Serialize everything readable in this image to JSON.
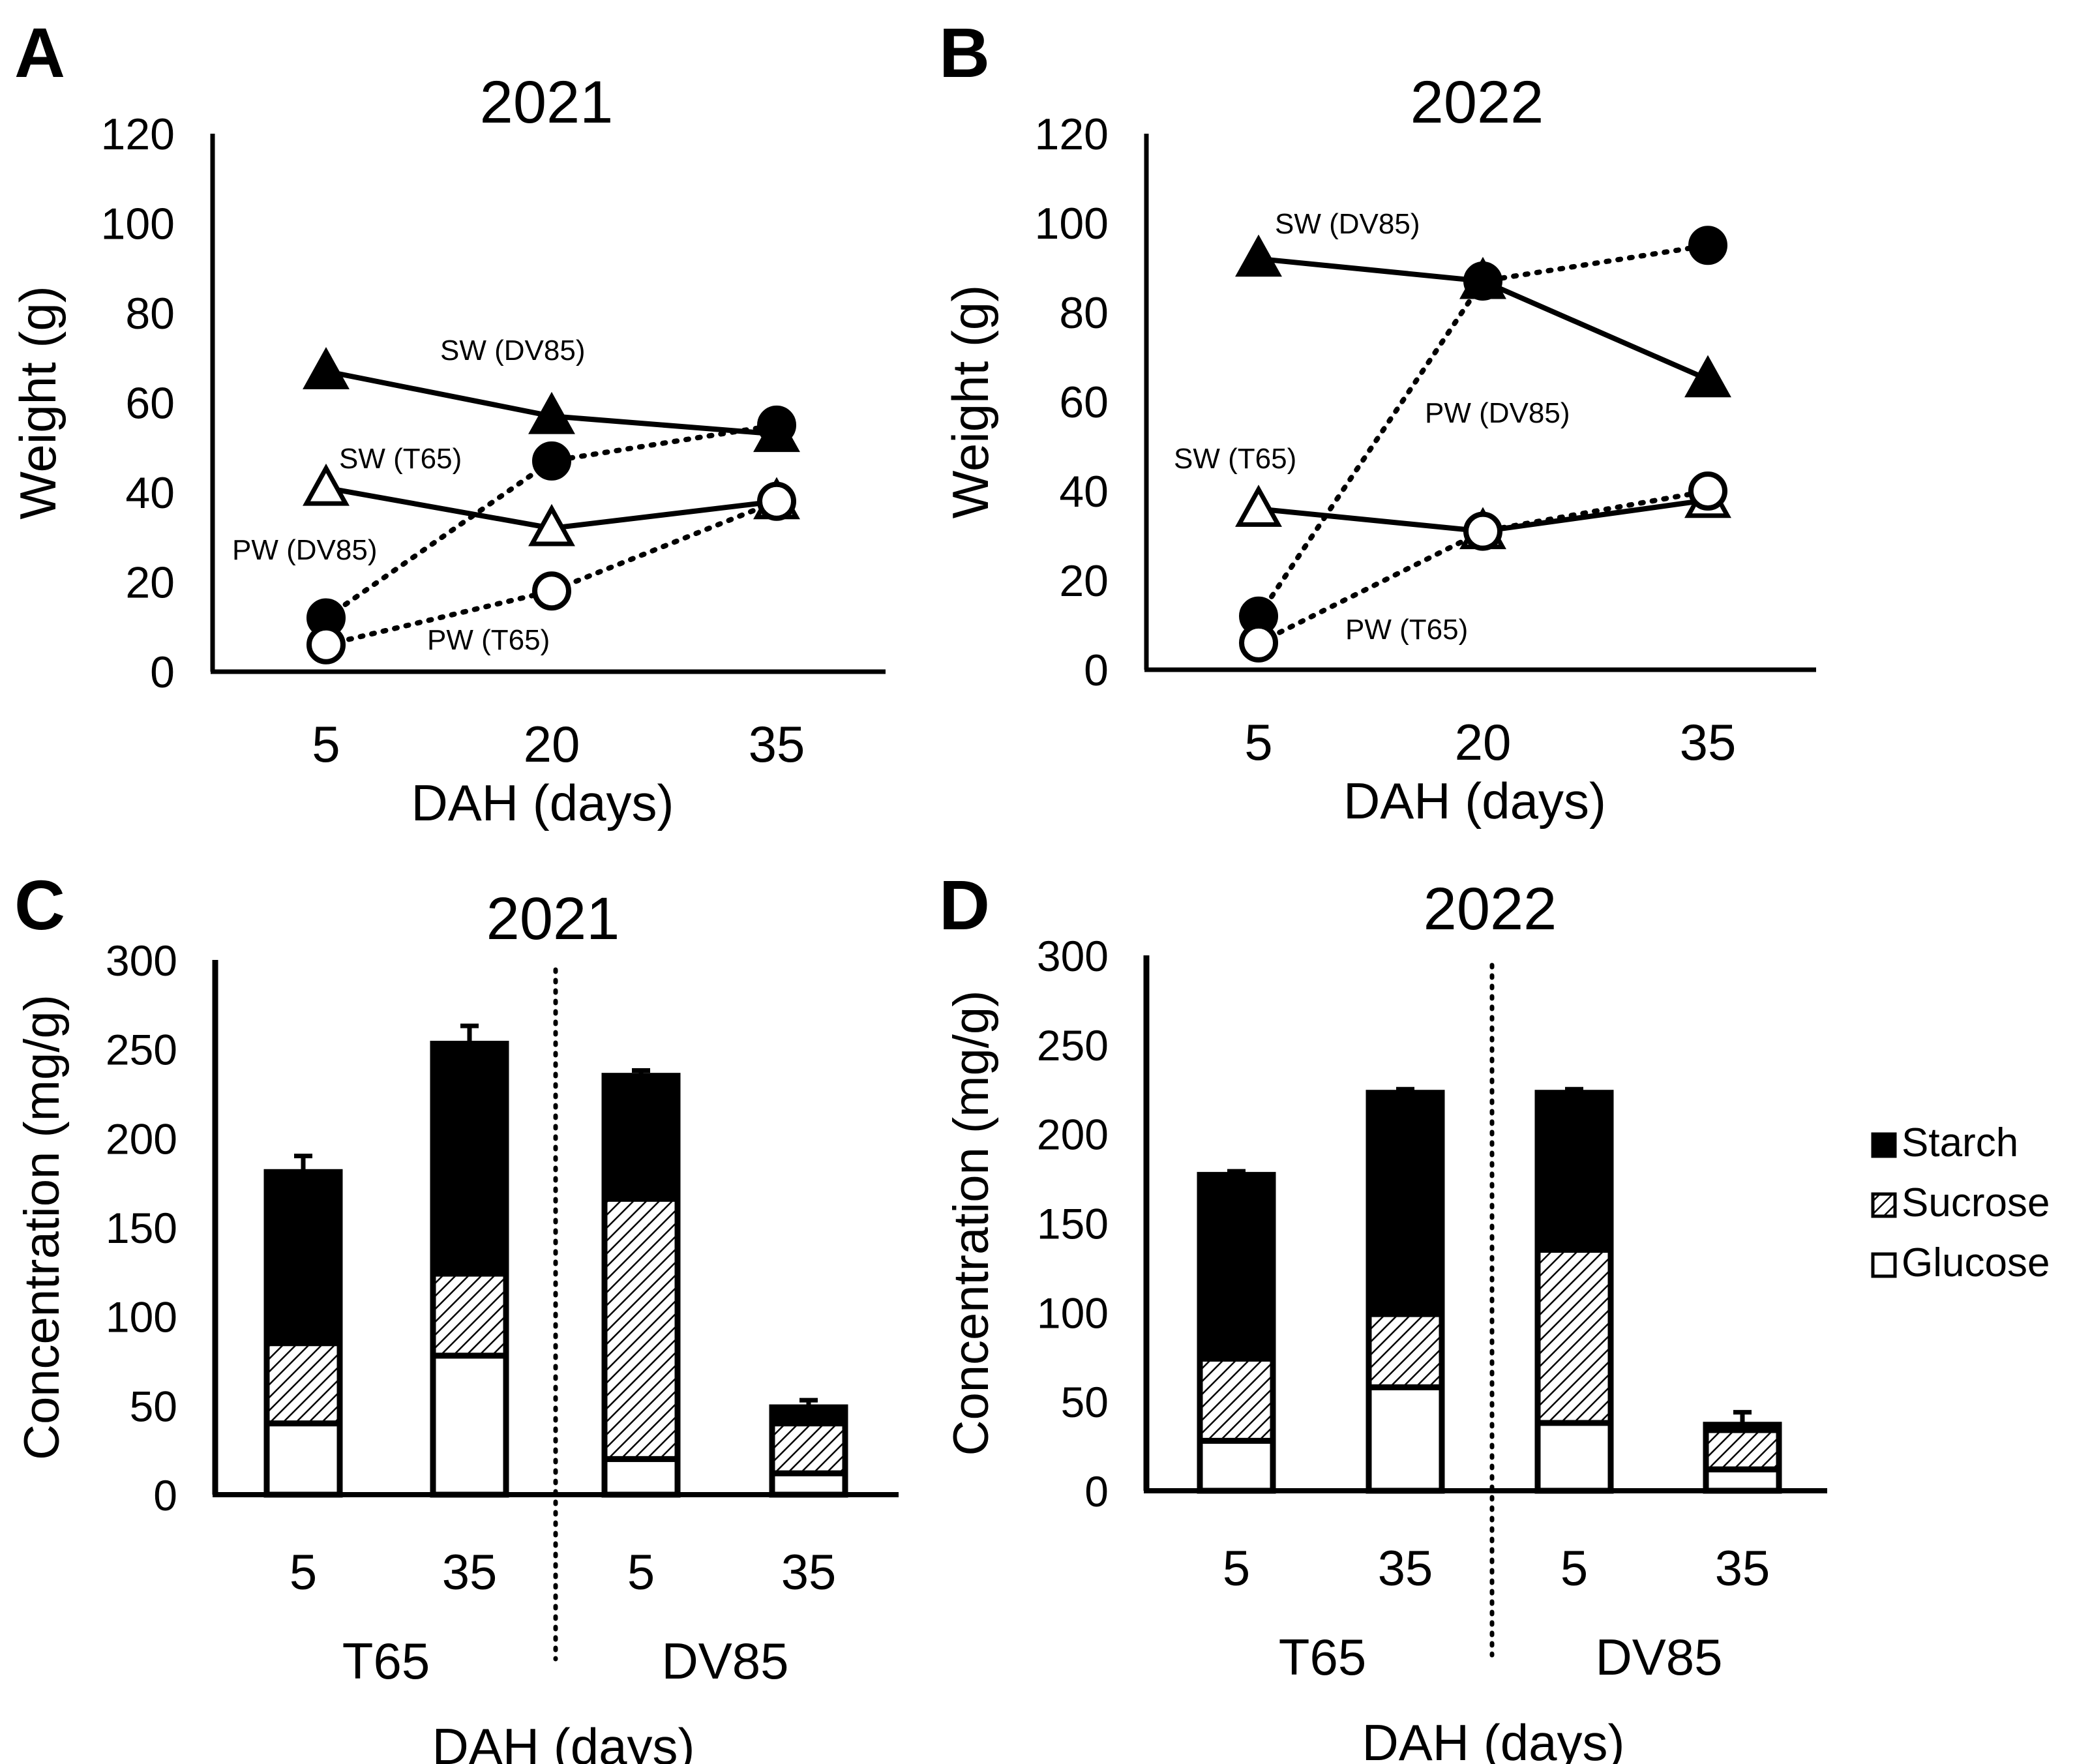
{
  "colors": {
    "ink": "#000000",
    "paper": "#ffffff"
  },
  "chart_data": [
    {
      "panel": "A",
      "type": "line",
      "title": "2021",
      "xlabel": "DAH (days)",
      "ylabel": "Weight (g)",
      "x": [
        5,
        20,
        35
      ],
      "ylim": [
        0,
        120
      ],
      "yticks": [
        "0",
        "20",
        "40",
        "60",
        "80",
        "100",
        "120"
      ],
      "series": [
        {
          "name": "SW (DV85)",
          "marker": "triangle-filled",
          "line": "solid",
          "values": [
            67,
            57,
            53
          ]
        },
        {
          "name": "SW (T65)",
          "marker": "triangle-open",
          "line": "solid",
          "values": [
            41,
            32,
            38
          ]
        },
        {
          "name": "PW (DV85)",
          "marker": "circle-filled",
          "line": "dotted",
          "values": [
            12,
            47,
            55
          ]
        },
        {
          "name": "PW (T65)",
          "marker": "circle-open",
          "line": "dotted",
          "values": [
            6,
            18,
            38
          ]
        }
      ]
    },
    {
      "panel": "B",
      "type": "line",
      "title": "2022",
      "xlabel": "DAH (days)",
      "ylabel": "Weight (g)",
      "x": [
        5,
        20,
        35
      ],
      "ylim": [
        0,
        120
      ],
      "yticks": [
        "0",
        "20",
        "40",
        "60",
        "80",
        "100",
        "120"
      ],
      "series": [
        {
          "name": "SW (DV85)",
          "marker": "triangle-filled",
          "line": "solid",
          "values": [
            92,
            87,
            65
          ]
        },
        {
          "name": "SW (T65)",
          "marker": "triangle-open",
          "line": "solid",
          "values": [
            36,
            31,
            38
          ]
        },
        {
          "name": "PW (DV85)",
          "marker": "circle-filled",
          "line": "dotted",
          "values": [
            12,
            87,
            95
          ]
        },
        {
          "name": "PW (T65)",
          "marker": "circle-open",
          "line": "dotted",
          "values": [
            6,
            31,
            40
          ]
        }
      ]
    },
    {
      "panel": "C",
      "type": "bar",
      "stacked": true,
      "title": "2021",
      "xlabel": "DAH (days)",
      "ylabel": "Concentration (mg/g)",
      "ylim": [
        0,
        300
      ],
      "yticks": [
        "0",
        "50",
        "100",
        "150",
        "200",
        "250",
        "300"
      ],
      "groups": [
        "T65",
        "DV85"
      ],
      "categories": [
        "5",
        "35",
        "5",
        "35"
      ],
      "legend": [
        "Starch",
        "Sucrose",
        "Glucose"
      ],
      "series": [
        {
          "name": "Glucose",
          "values": [
            40,
            78,
            20,
            12
          ],
          "errors": [
            0,
            13,
            0,
            0
          ]
        },
        {
          "name": "Sucrose",
          "values": [
            45,
            46,
            146,
            28
          ],
          "errors": [
            4,
            7,
            3,
            0
          ]
        },
        {
          "name": "Starch",
          "values": [
            96,
            129,
            69,
            9
          ],
          "errors": [
            9,
            10,
            3,
            4
          ]
        }
      ]
    },
    {
      "panel": "D",
      "type": "bar",
      "stacked": true,
      "title": "2022",
      "xlabel": "DAH (days)",
      "ylabel": "Concentration (mg/g)",
      "ylim": [
        0,
        300
      ],
      "yticks": [
        "0",
        "50",
        "100",
        "150",
        "200",
        "250",
        "300"
      ],
      "groups": [
        "T65",
        "DV85"
      ],
      "categories": [
        "5",
        "35",
        "5",
        "35"
      ],
      "legend": [
        "Starch",
        "Sucrose",
        "Glucose"
      ],
      "series": [
        {
          "name": "Glucose",
          "values": [
            28,
            58,
            38,
            12
          ],
          "errors": [
            0,
            0,
            0,
            0
          ]
        },
        {
          "name": "Sucrose",
          "values": [
            46,
            41,
            97,
            22
          ],
          "errors": [
            10,
            10,
            15,
            6
          ]
        },
        {
          "name": "Starch",
          "values": [
            103,
            124,
            88,
            3
          ],
          "errors": [
            2,
            2,
            2,
            7
          ]
        }
      ]
    }
  ]
}
